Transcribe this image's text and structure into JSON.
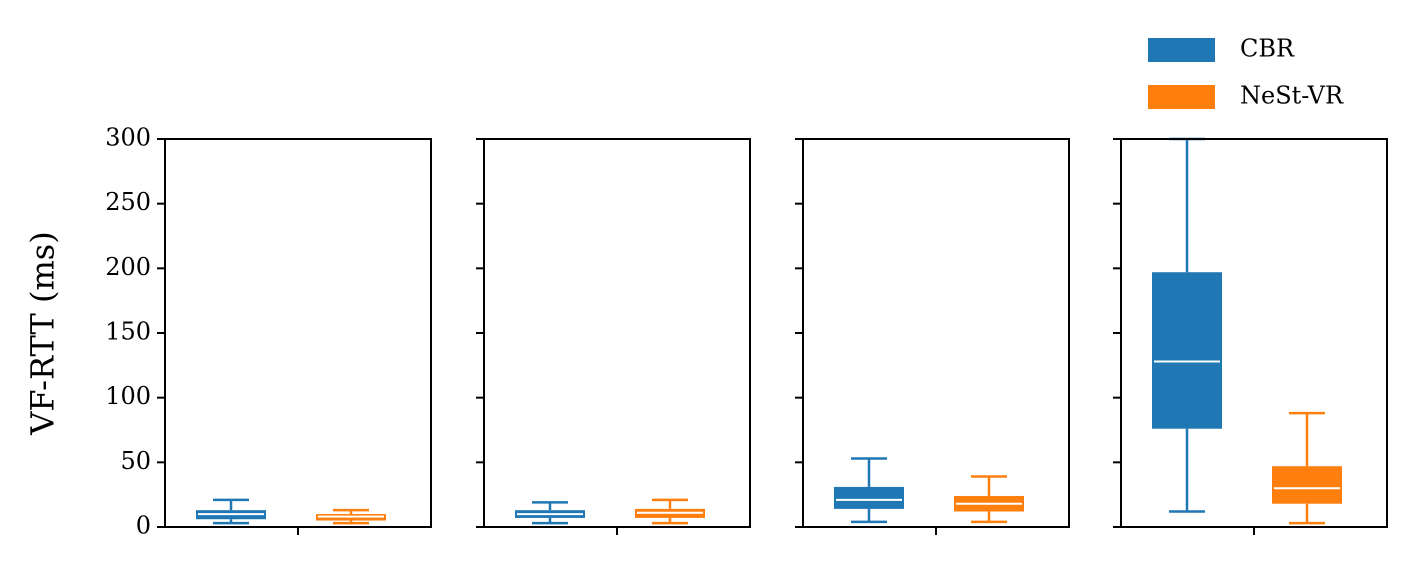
{
  "chart_data": [
    {
      "type": "box",
      "ylabel": "VF-RTT (ms)",
      "ylim": [
        0,
        300
      ],
      "yticks": [
        0,
        50,
        100,
        150,
        200,
        250,
        300
      ],
      "series": [
        {
          "color": "#1f77b4",
          "min": 3,
          "q1": 6,
          "median": 10,
          "q3": 13,
          "max": 21
        },
        {
          "color": "#ff7f0e",
          "min": 3,
          "q1": 5,
          "median": 8,
          "q3": 10,
          "max": 13
        }
      ]
    },
    {
      "type": "box",
      "ylim": [
        0,
        300
      ],
      "yticks": [
        0,
        50,
        100,
        150,
        200,
        250,
        300
      ],
      "series": [
        {
          "color": "#1f77b4",
          "min": 3,
          "q1": 7,
          "median": 10,
          "q3": 13,
          "max": 19
        },
        {
          "color": "#ff7f0e",
          "min": 3,
          "q1": 7,
          "median": 11,
          "q3": 14,
          "max": 21
        }
      ]
    },
    {
      "type": "box",
      "ylim": [
        0,
        300
      ],
      "yticks": [
        0,
        50,
        100,
        150,
        200,
        250,
        300
      ],
      "series": [
        {
          "color": "#1f77b4",
          "min": 4,
          "q1": 14,
          "median": 21,
          "q3": 31,
          "max": 53
        },
        {
          "color": "#ff7f0e",
          "min": 4,
          "q1": 12,
          "median": 18,
          "q3": 24,
          "max": 39
        }
      ]
    },
    {
      "type": "box",
      "ylim": [
        0,
        300
      ],
      "yticks": [
        0,
        50,
        100,
        150,
        200,
        250,
        300
      ],
      "series": [
        {
          "name": "CBR",
          "color": "#1f77b4",
          "min": 12,
          "q1": 76,
          "median": 128,
          "q3": 197,
          "max": 300
        },
        {
          "name": "NeSt-VR",
          "color": "#ff7f0e",
          "min": 3,
          "q1": 18,
          "median": 30,
          "q3": 47,
          "max": 88
        }
      ]
    }
  ]
}
